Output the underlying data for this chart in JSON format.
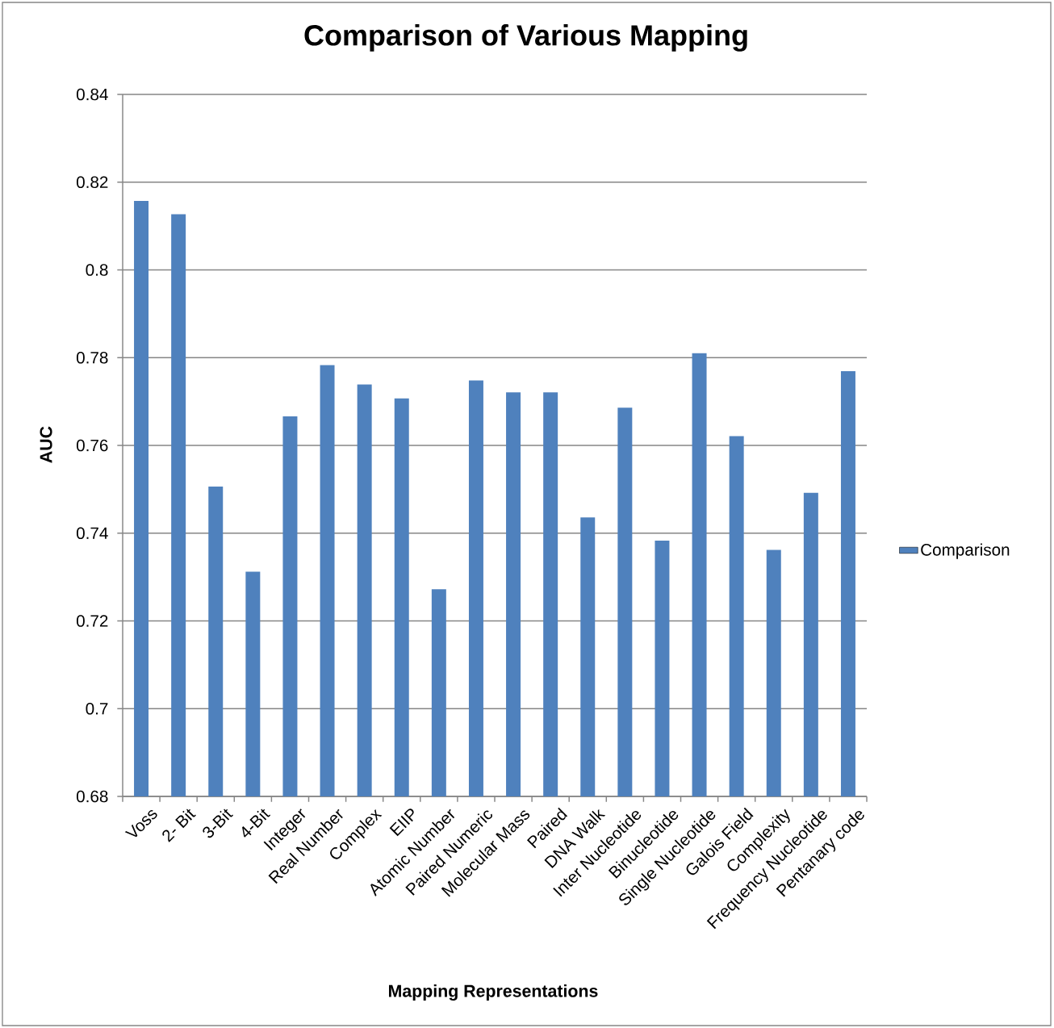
{
  "chart_data": {
    "type": "bar",
    "title": "Comparison of Various Mapping",
    "xlabel": "Mapping Representations",
    "ylabel": "AUC",
    "categories": [
      "Voss",
      "2- Bit",
      "3-Bit",
      "4-Bit",
      "Integer",
      "Real Number",
      "Complex",
      "EIIP",
      "Atomic Number",
      "Paired Numeric",
      "Molecular Mass",
      "Paired",
      "DNA Walk",
      "Inter Nucleotide",
      "Binucleotide",
      "Single Nucleotide",
      "Galois Field",
      "Complexity",
      "Frequency Nucleotide",
      "Pentanary code"
    ],
    "series": [
      {
        "name": "Comparison",
        "color": "#4f81bd",
        "values": [
          0.8157,
          0.8127,
          0.7506,
          0.7312,
          0.7666,
          0.7783,
          0.7739,
          0.7707,
          0.7272,
          0.7748,
          0.7721,
          0.7721,
          0.7436,
          0.7686,
          0.7383,
          0.781,
          0.7621,
          0.7362,
          0.7492,
          0.7769
        ]
      }
    ],
    "ylim": [
      0.68,
      0.84
    ],
    "yticks": [
      0.68,
      0.7,
      0.72,
      0.74,
      0.76,
      0.78,
      0.8,
      0.82,
      0.84
    ],
    "grid": "y",
    "legend": "right"
  }
}
